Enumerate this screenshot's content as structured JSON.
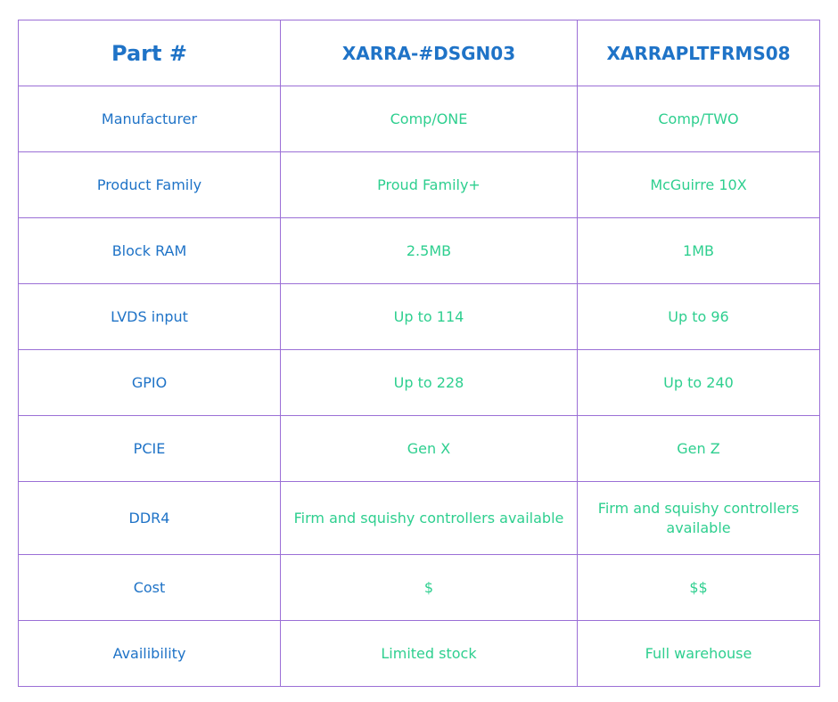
{
  "header": {
    "label": "Part #",
    "part_a": "XARRA-#DSGN03",
    "part_b": "XARRAPLTFRMS08"
  },
  "rows": [
    {
      "label": "Manufacturer",
      "a": "Comp/ONE",
      "b": "Comp/TWO"
    },
    {
      "label": "Product Family",
      "a": "Proud Family+",
      "b": "McGuirre 10X"
    },
    {
      "label": "Block RAM",
      "a": "2.5MB",
      "b": "1MB"
    },
    {
      "label": "LVDS input",
      "a": "Up to 114",
      "b": "Up to 96"
    },
    {
      "label": "GPIO",
      "a": "Up to 228",
      "b": "Up to 240"
    },
    {
      "label": "PCIE",
      "a": "Gen X",
      "b": "Gen Z"
    },
    {
      "label": "DDR4",
      "a": "Firm and squishy controllers available",
      "b": "Firm and squishy controllers available"
    },
    {
      "label": "Cost",
      "a": "$",
      "b": "$$"
    },
    {
      "label": "Availibility",
      "a": "Limited stock",
      "b": "Full warehouse"
    }
  ],
  "colors": {
    "label_text": "#1f73c7",
    "value_text": "#2ecf8f",
    "border": "#9b6fd6"
  }
}
